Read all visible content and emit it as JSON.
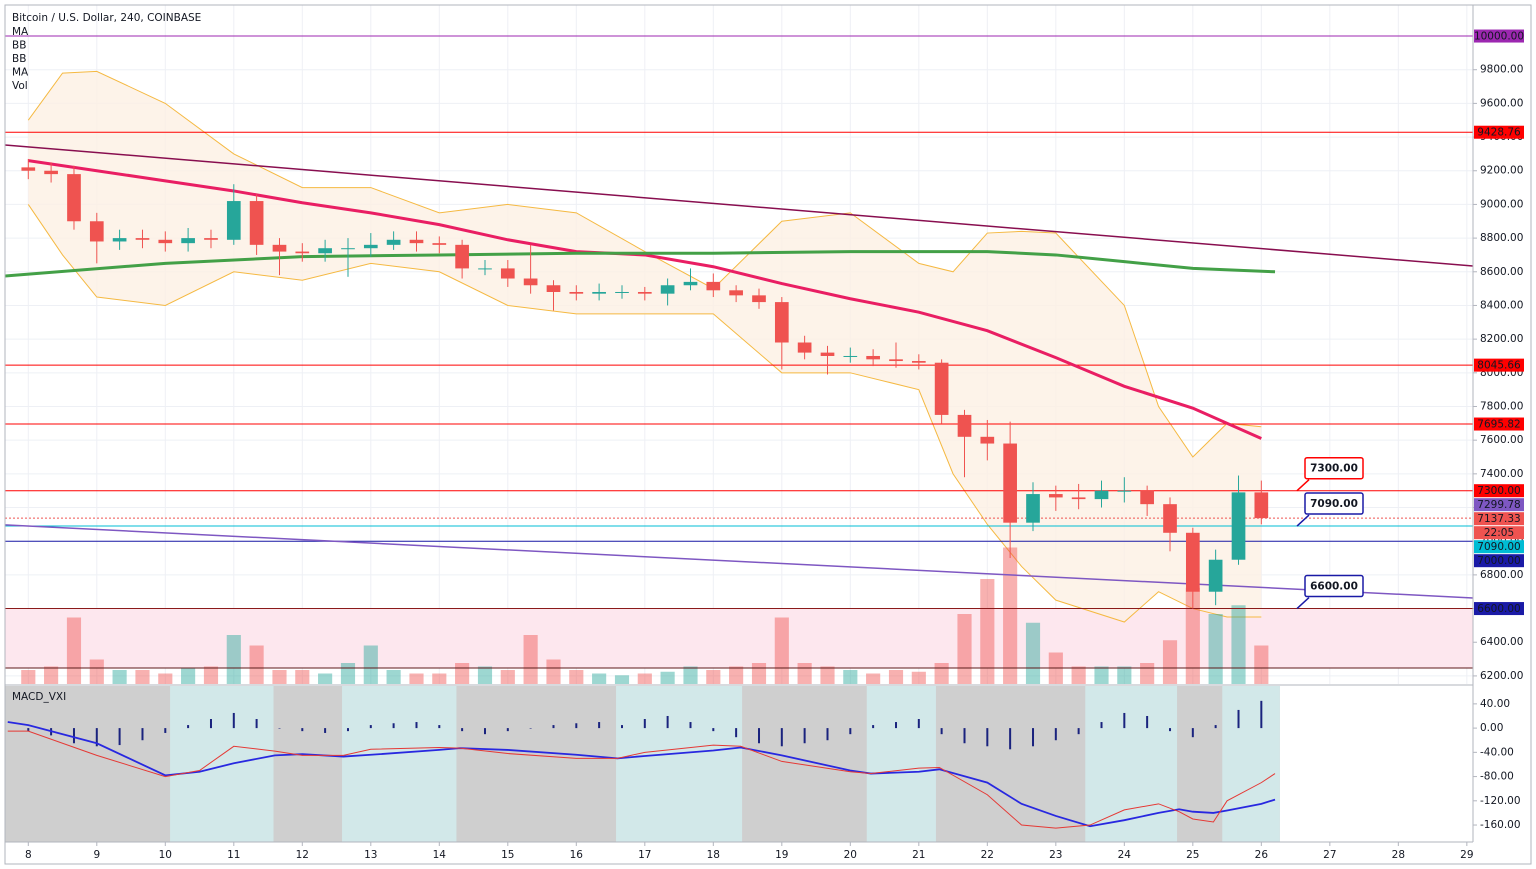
{
  "chart_data": [
    {
      "type": "candlestick",
      "title": "Bitcoin / U.S. Dollar, 240, COINBASE",
      "indicators": [
        "MA",
        "BB",
        "BB",
        "MA",
        "Vol"
      ],
      "up_color": "#26a69a",
      "down_color": "#ef5350",
      "xlim": [
        7.66,
        29.09
      ],
      "ylim": [
        6152,
        10214
      ],
      "xticks": [
        8,
        9,
        10,
        11,
        12,
        13,
        14,
        15,
        16,
        17,
        18,
        19,
        20,
        21,
        22,
        23,
        24,
        25,
        26,
        27,
        28,
        29
      ],
      "yticks": [
        {
          "value": 6200,
          "label": "6200.00"
        },
        {
          "value": 6400,
          "label": "6400.00"
        },
        {
          "value": 6600,
          "label": "6600.00"
        },
        {
          "value": 6800,
          "label": "6800.00"
        },
        {
          "value": 7000,
          "label": "7000.00"
        },
        {
          "value": 7200,
          "label": "7200.00"
        },
        {
          "value": 7400,
          "label": "7400.00"
        },
        {
          "value": 7600,
          "label": "7600.00"
        },
        {
          "value": 7800,
          "label": "7800.00"
        },
        {
          "value": 8000,
          "label": "8000.00"
        },
        {
          "value": 8200,
          "label": "8200.00"
        },
        {
          "value": 8400,
          "label": "8400.00"
        },
        {
          "value": 8600,
          "label": "8600.00"
        },
        {
          "value": 8800,
          "label": "8800.00"
        },
        {
          "value": 9000,
          "label": "9000.00"
        },
        {
          "value": 9200,
          "label": "9200.00"
        },
        {
          "value": 9400,
          "label": "9400.00"
        },
        {
          "value": 9600,
          "label": "9600.00"
        },
        {
          "value": 9800,
          "label": "9800.00"
        }
      ],
      "grid": true,
      "x": [
        8,
        8.333,
        8.667,
        9,
        9.333,
        9.667,
        10,
        10.333,
        10.667,
        11,
        11.333,
        11.667,
        12,
        12.333,
        12.667,
        13,
        13.333,
        13.667,
        14,
        14.333,
        14.667,
        15,
        15.333,
        15.667,
        16,
        16.333,
        16.667,
        17,
        17.333,
        17.667,
        18,
        18.333,
        18.667,
        19,
        19.333,
        19.667,
        20,
        20.333,
        20.667,
        21,
        21.333,
        21.667,
        22,
        22.333,
        22.667,
        23,
        23.333,
        23.667,
        24,
        24.333,
        24.667,
        25,
        25.333,
        25.667,
        26
      ],
      "open": [
        9220,
        9200,
        9180,
        8900,
        8780,
        8800,
        8790,
        8770,
        8800,
        8790,
        9020,
        8760,
        8720,
        8710,
        8740,
        8740,
        8760,
        8790,
        8770,
        8760,
        8620,
        8620,
        8560,
        8520,
        8480,
        8470,
        8480,
        8480,
        8470,
        8520,
        8540,
        8490,
        8460,
        8420,
        8180,
        8120,
        8100,
        8100,
        8080,
        8070,
        8060,
        7750,
        7620,
        7580,
        7110,
        7280,
        7260,
        7250,
        7300,
        7300,
        7220,
        7050,
        6700,
        6890,
        7290
      ],
      "high": [
        9270,
        9250,
        9230,
        8950,
        8850,
        8850,
        8840,
        8860,
        8850,
        9120,
        9060,
        8800,
        8770,
        8790,
        8800,
        8830,
        8840,
        8840,
        8810,
        8790,
        8670,
        8670,
        8760,
        8550,
        8520,
        8530,
        8520,
        8510,
        8560,
        8620,
        8590,
        8520,
        8500,
        8450,
        8220,
        8160,
        8150,
        8140,
        8180,
        8110,
        8080,
        7780,
        7720,
        7710,
        7350,
        7330,
        7340,
        7360,
        7380,
        7330,
        7260,
        7080,
        6950,
        7390,
        7360
      ],
      "low": [
        9150,
        9130,
        8850,
        8650,
        8730,
        8740,
        8720,
        8720,
        8740,
        8760,
        8700,
        8580,
        8660,
        8660,
        8570,
        8690,
        8730,
        8720,
        8710,
        8560,
        8580,
        8510,
        8470,
        8370,
        8430,
        8430,
        8440,
        8430,
        8400,
        8490,
        8450,
        8420,
        8380,
        8020,
        8080,
        7990,
        8060,
        8040,
        8030,
        8020,
        7700,
        7380,
        7480,
        6900,
        7060,
        7180,
        7190,
        7200,
        7230,
        7150,
        6940,
        6600,
        6620,
        6860,
        7100
      ],
      "close": [
        9200,
        9180,
        8900,
        8780,
        8800,
        8790,
        8770,
        8800,
        8790,
        9020,
        8760,
        8720,
        8710,
        8740,
        8740,
        8760,
        8790,
        8770,
        8760,
        8620,
        8620,
        8560,
        8520,
        8480,
        8470,
        8480,
        8480,
        8470,
        8520,
        8540,
        8490,
        8460,
        8420,
        8180,
        8120,
        8100,
        8100,
        8080,
        8070,
        8060,
        7750,
        7620,
        7580,
        7110,
        7280,
        7260,
        7250,
        7300,
        7300,
        7220,
        7050,
        6700,
        6890,
        7290,
        7137
      ],
      "volume": [
        8,
        10,
        38,
        14,
        8,
        8,
        6,
        9,
        10,
        28,
        22,
        8,
        8,
        6,
        12,
        22,
        8,
        6,
        6,
        12,
        10,
        8,
        28,
        14,
        8,
        6,
        5,
        6,
        7,
        10,
        8,
        10,
        12,
        38,
        12,
        10,
        8,
        6,
        8,
        7,
        12,
        40,
        60,
        78,
        35,
        18,
        10,
        10,
        10,
        12,
        25,
        55,
        40,
        45,
        22
      ],
      "vol_ylim": [
        0,
        80
      ],
      "bands": {
        "color": "#f5b942",
        "fill": "#fdf0e4",
        "x": [
          8,
          8.5,
          9,
          10,
          11,
          12,
          13,
          14,
          15,
          16,
          17,
          18,
          19,
          20,
          21,
          21.5,
          22,
          22.5,
          23,
          24,
          24.5,
          25,
          25.5,
          26
        ],
        "upper": [
          9500,
          9780,
          9790,
          9600,
          9300,
          9100,
          9100,
          8950,
          9000,
          8950,
          8720,
          8500,
          8900,
          8950,
          8650,
          8600,
          8830,
          8840,
          8830,
          8400,
          7800,
          7500,
          7700,
          7680
        ],
        "lower": [
          9000,
          8700,
          8450,
          8400,
          8600,
          8550,
          8650,
          8600,
          8400,
          8350,
          8350,
          8350,
          8000,
          8000,
          7900,
          7400,
          7100,
          6850,
          6650,
          6520,
          6700,
          6600,
          6550,
          6550
        ]
      },
      "overlays": [
        {
          "color": "#e91e63",
          "width": 3,
          "x": [
            8,
            9,
            10,
            11,
            12,
            13,
            14,
            15,
            16,
            17,
            18,
            19,
            20,
            21,
            22,
            23,
            24,
            25,
            26
          ],
          "values": [
            9260,
            9200,
            9140,
            9080,
            9010,
            8950,
            8880,
            8790,
            8720,
            8700,
            8630,
            8530,
            8440,
            8360,
            8250,
            8090,
            7920,
            7790,
            7610
          ]
        },
        {
          "color": "#43a047",
          "width": 3,
          "x": [
            7.66,
            10,
            12,
            14,
            16,
            18,
            20,
            22,
            23,
            24,
            25,
            26.2
          ],
          "values": [
            8575,
            8650,
            8690,
            8700,
            8710,
            8710,
            8720,
            8720,
            8700,
            8660,
            8620,
            8600
          ]
        }
      ],
      "trendlines": [
        {
          "color": "#880e4f",
          "x": [
            7.66,
            29.09
          ],
          "values": [
            9353,
            8634
          ]
        },
        {
          "color": "#7e57c2",
          "x": [
            7.66,
            29.09
          ],
          "values": [
            7097,
            6663
          ]
        }
      ],
      "zone": {
        "from": 6247,
        "to": 6600,
        "color": "#fde7ee"
      },
      "hlines": [
        {
          "value": 10000,
          "label": "10000.00",
          "color": "#9c27b0"
        },
        {
          "value": 9428.76,
          "label": "9428.76",
          "color": "#ff0000"
        },
        {
          "value": 8045.66,
          "label": "8045.66",
          "color": "#ff0000"
        },
        {
          "value": 7695.82,
          "label": "7695.82",
          "color": "#ff0000"
        },
        {
          "value": 7300,
          "label": "7300.00",
          "color": "#ff0000"
        },
        {
          "value": 7299.78,
          "label": "7299.78",
          "color": "#7e57c2",
          "line": false
        },
        {
          "value": 7137.33,
          "label": "7137.33",
          "sublabel": "22:05",
          "color": "#ef5350",
          "dash": true
        },
        {
          "value": 7090,
          "label": "7090.00",
          "color": "#00bcd4"
        },
        {
          "value": 7000,
          "label": "7000.00",
          "color": "#1a1aa6"
        },
        {
          "value": 6600,
          "label": "6600.00",
          "color": "#8b1a1a",
          "tag_color": "#1a1aa6"
        },
        {
          "value": 6247,
          "color": "#5d1a1a"
        }
      ],
      "callouts": [
        {
          "value": 7300,
          "label": "7300.00",
          "color": "#ff0000"
        },
        {
          "value": 7090,
          "label": "7090.00",
          "color": "#1a1aa6"
        },
        {
          "value": 6600,
          "label": "6600.00",
          "color": "#1a1aa6"
        }
      ]
    },
    {
      "type": "macd",
      "title": "MACD_VXI",
      "ylim": [
        -188,
        69.5
      ],
      "yticks": [
        {
          "value": 40,
          "label": "40.00"
        },
        {
          "value": 0,
          "label": "0.00"
        },
        {
          "value": -40,
          "label": "-40.00"
        },
        {
          "value": -80,
          "label": "-80.00"
        },
        {
          "value": -120,
          "label": "-120.00"
        },
        {
          "value": -160,
          "label": "-160.00"
        }
      ],
      "background_color": "#cfcfcf",
      "region_color": "#d2e8e9",
      "regions": [
        [
          10.07,
          11.58
        ],
        [
          12.58,
          14.25
        ],
        [
          16.58,
          18.42
        ],
        [
          20.24,
          21.25
        ],
        [
          23.43,
          24.77
        ],
        [
          25.43,
          26.27
        ]
      ],
      "histogram": [
        -5,
        -12,
        -25,
        -30,
        -28,
        -20,
        -8,
        5,
        15,
        25,
        15,
        0,
        -5,
        -8,
        -5,
        5,
        8,
        10,
        5,
        -5,
        -10,
        -5,
        0,
        5,
        8,
        10,
        5,
        15,
        20,
        10,
        -5,
        -15,
        -25,
        -30,
        -25,
        -20,
        -10,
        5,
        10,
        15,
        -10,
        -25,
        -30,
        -35,
        -30,
        -20,
        -10,
        10,
        25,
        20,
        -5,
        -15,
        5,
        30,
        45
      ],
      "hist_color": "#1a237e",
      "x": [
        7.7,
        8,
        9,
        10,
        10.5,
        11,
        11.6,
        12,
        12.6,
        13,
        14,
        14.3,
        15,
        16,
        16.6,
        17,
        18,
        18.4,
        19,
        20,
        20.3,
        21,
        21.3,
        22,
        22.5,
        23,
        23.5,
        24,
        24.5,
        24.8,
        25,
        25.3,
        25.5,
        26,
        26.2
      ],
      "series": [
        {
          "color": "#2828e0",
          "values": [
            10,
            5,
            -25,
            -78,
            -72,
            -58,
            -45,
            -43,
            -47,
            -44,
            -36,
            -33,
            -36,
            -44,
            -50,
            -46,
            -37,
            -32,
            -45,
            -70,
            -75,
            -72,
            -68,
            -90,
            -125,
            -145,
            -162,
            -152,
            -140,
            -134,
            -138,
            -140,
            -136,
            -125,
            -118
          ]
        },
        {
          "color": "#e53935",
          "values": [
            -5,
            -5,
            -45,
            -80,
            -70,
            -30,
            -38,
            -45,
            -45,
            -35,
            -32,
            -33,
            -42,
            -50,
            -50,
            -40,
            -28,
            -30,
            -55,
            -72,
            -75,
            -66,
            -65,
            -110,
            -160,
            -165,
            -160,
            -135,
            -125,
            -138,
            -150,
            -155,
            -120,
            -90,
            -75
          ]
        }
      ]
    }
  ]
}
